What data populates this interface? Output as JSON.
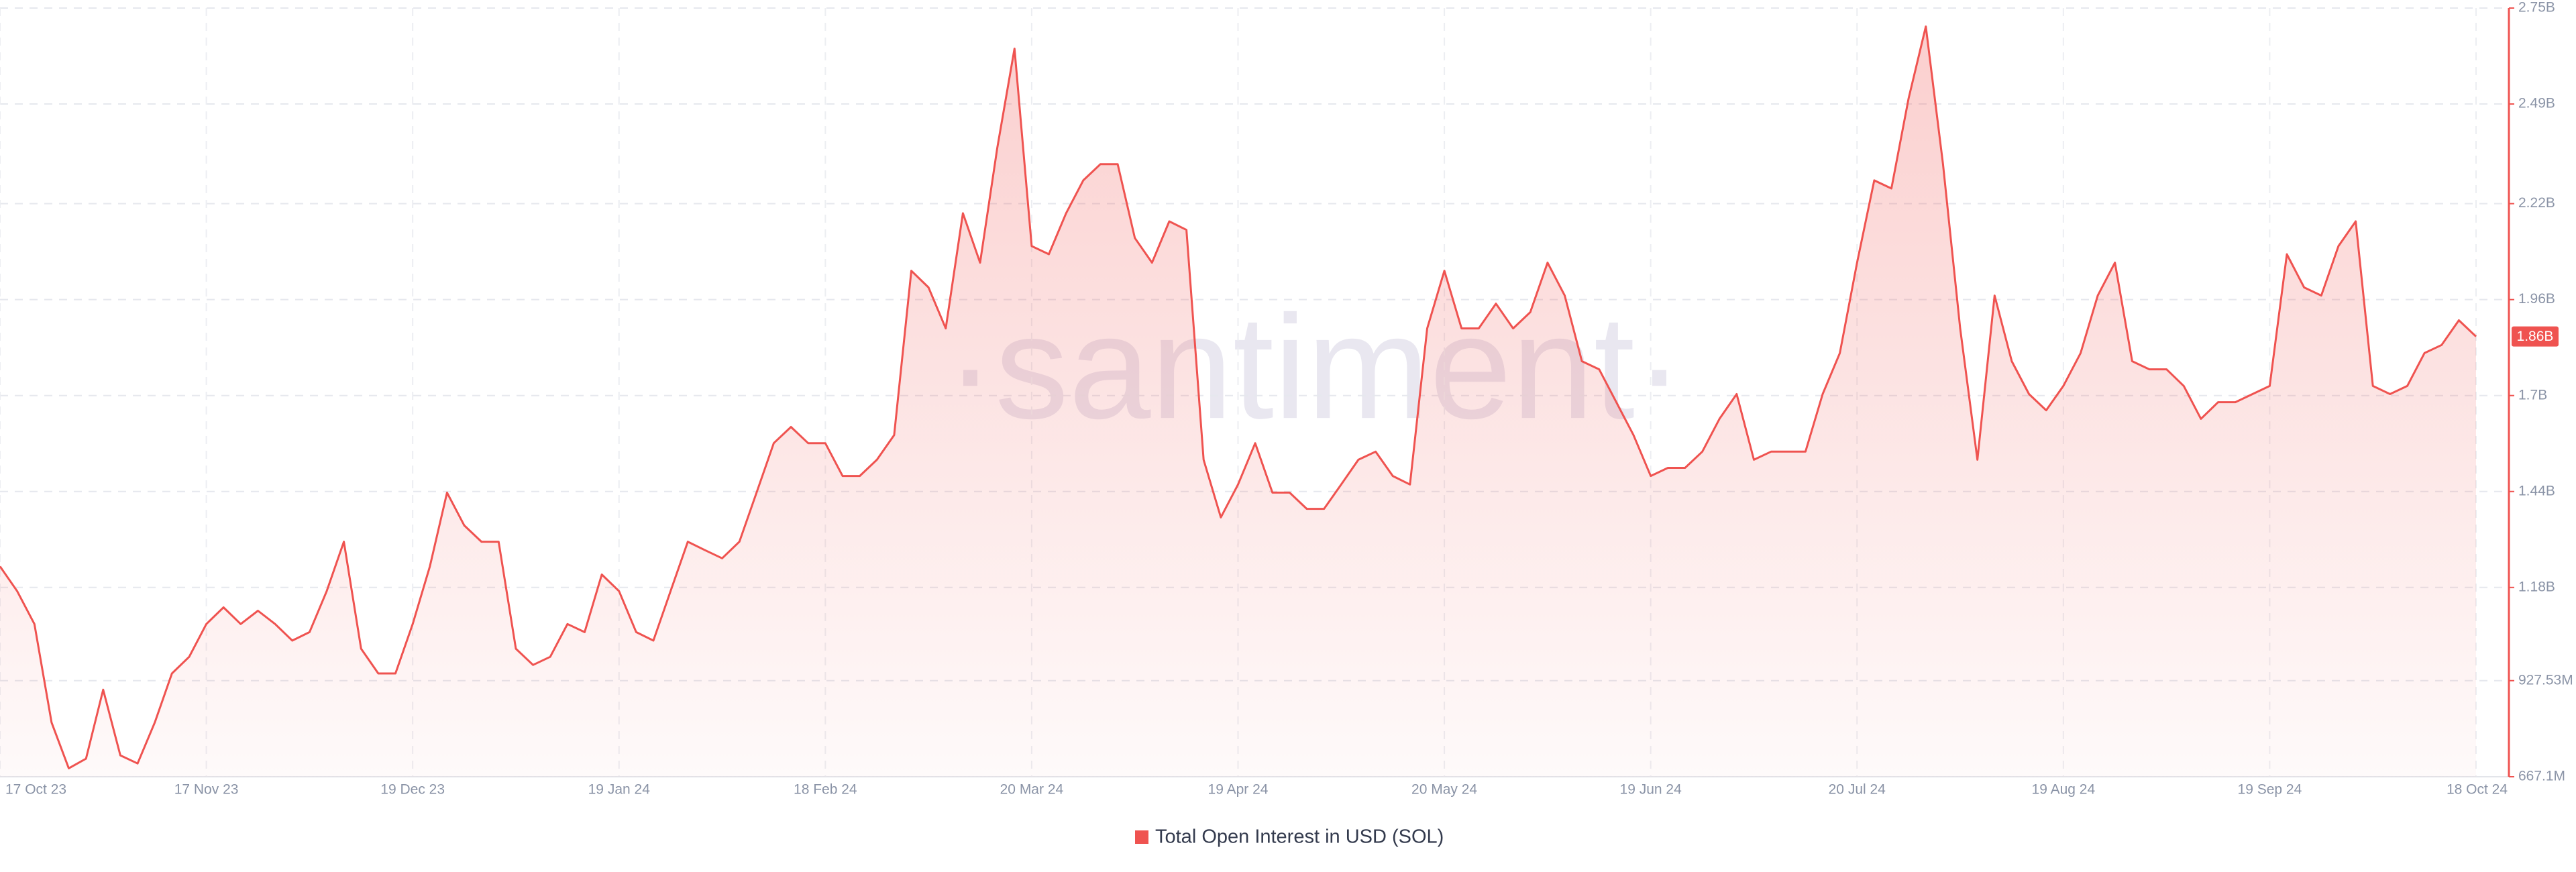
{
  "chart_data": {
    "type": "area",
    "watermark": "·santiment·",
    "categories": [
      "17 Oct 23",
      null,
      null,
      null,
      null,
      null,
      null,
      null,
      null,
      null,
      null,
      null,
      "17 Nov 23",
      null,
      null,
      null,
      null,
      null,
      null,
      null,
      null,
      null,
      null,
      null,
      "19 Dec 23",
      null,
      null,
      null,
      null,
      null,
      null,
      null,
      null,
      null,
      null,
      null,
      "19 Jan 24",
      null,
      null,
      null,
      null,
      null,
      null,
      null,
      null,
      null,
      null,
      null,
      "18 Feb 24",
      null,
      null,
      null,
      null,
      null,
      null,
      null,
      null,
      null,
      null,
      null,
      "20 Mar 24",
      null,
      null,
      null,
      null,
      null,
      null,
      null,
      null,
      null,
      null,
      null,
      "19 Apr 24",
      null,
      null,
      null,
      null,
      null,
      null,
      null,
      null,
      null,
      null,
      null,
      "20 May 24",
      null,
      null,
      null,
      null,
      null,
      null,
      null,
      null,
      null,
      null,
      null,
      "19 Jun 24",
      null,
      null,
      null,
      null,
      null,
      null,
      null,
      null,
      null,
      null,
      null,
      "20 Jul 24",
      null,
      null,
      null,
      null,
      null,
      null,
      null,
      null,
      null,
      null,
      null,
      "19 Aug 24",
      null,
      null,
      null,
      null,
      null,
      null,
      null,
      null,
      null,
      null,
      null,
      "19 Sep 24",
      null,
      null,
      null,
      null,
      null,
      null,
      null,
      null,
      null,
      null,
      null,
      "18 Oct 24"
    ],
    "series": [
      {
        "name": "Total Open Interest in USD (SOL)",
        "color": "#ef5350",
        "values": [
          1237,
          1170,
          1081,
          814,
          690,
          716,
          903,
          725,
          703,
          814,
          947,
          992,
          1081,
          1126,
          1081,
          1117,
          1081,
          1036,
          1059,
          1170,
          1304,
          1014,
          947,
          947,
          1081,
          1237,
          1437,
          1348,
          1304,
          1304,
          1014,
          970,
          992,
          1081,
          1059,
          1215,
          1170,
          1059,
          1036,
          1170,
          1304,
          1281,
          1259,
          1304,
          1437,
          1571,
          1615,
          1571,
          1571,
          1482,
          1482,
          1526,
          1593,
          2038,
          1993,
          1882,
          2194,
          2060,
          2372,
          2640,
          2105,
          2083,
          2194,
          2283,
          2327,
          2327,
          2127,
          2060,
          2172,
          2149,
          1526,
          1370,
          1459,
          1571,
          1437,
          1437,
          1393,
          1393,
          1459,
          1526,
          1548,
          1482,
          1459,
          1882,
          2038,
          1882,
          1882,
          1949,
          1882,
          1926,
          2060,
          1971,
          1793,
          1771,
          1682,
          1593,
          1482,
          1504,
          1504,
          1548,
          1637,
          1704,
          1526,
          1548,
          1548,
          1548,
          1704,
          1815,
          2060,
          2283,
          2261,
          2505,
          2700,
          2327,
          1882,
          1526,
          1971,
          1793,
          1704,
          1660,
          1726,
          1815,
          1971,
          2060,
          1793,
          1771,
          1771,
          1726,
          1637,
          1682,
          1682,
          1704,
          1726,
          2083,
          1993,
          1971,
          2105,
          2172,
          1726,
          1704,
          1726,
          1815,
          1837,
          1904,
          1860
        ]
      }
    ],
    "annotations": [
      {
        "value": 1860,
        "label": "1.86B"
      }
    ],
    "ylim": [
      667.1,
      2750
    ],
    "yticks": [
      {
        "value": 667.1,
        "label": "667.1M"
      },
      {
        "value": 927.53,
        "label": "927.53M"
      },
      {
        "value": 1180,
        "label": "1.18B"
      },
      {
        "value": 1440,
        "label": "1.44B"
      },
      {
        "value": 1700,
        "label": "1.7B"
      },
      {
        "value": 1960,
        "label": "1.96B"
      },
      {
        "value": 2220,
        "label": "2.22B"
      },
      {
        "value": 2490,
        "label": "2.49B"
      },
      {
        "value": 2750,
        "label": "2.75B"
      }
    ],
    "grid": true,
    "legend": "bottom"
  }
}
